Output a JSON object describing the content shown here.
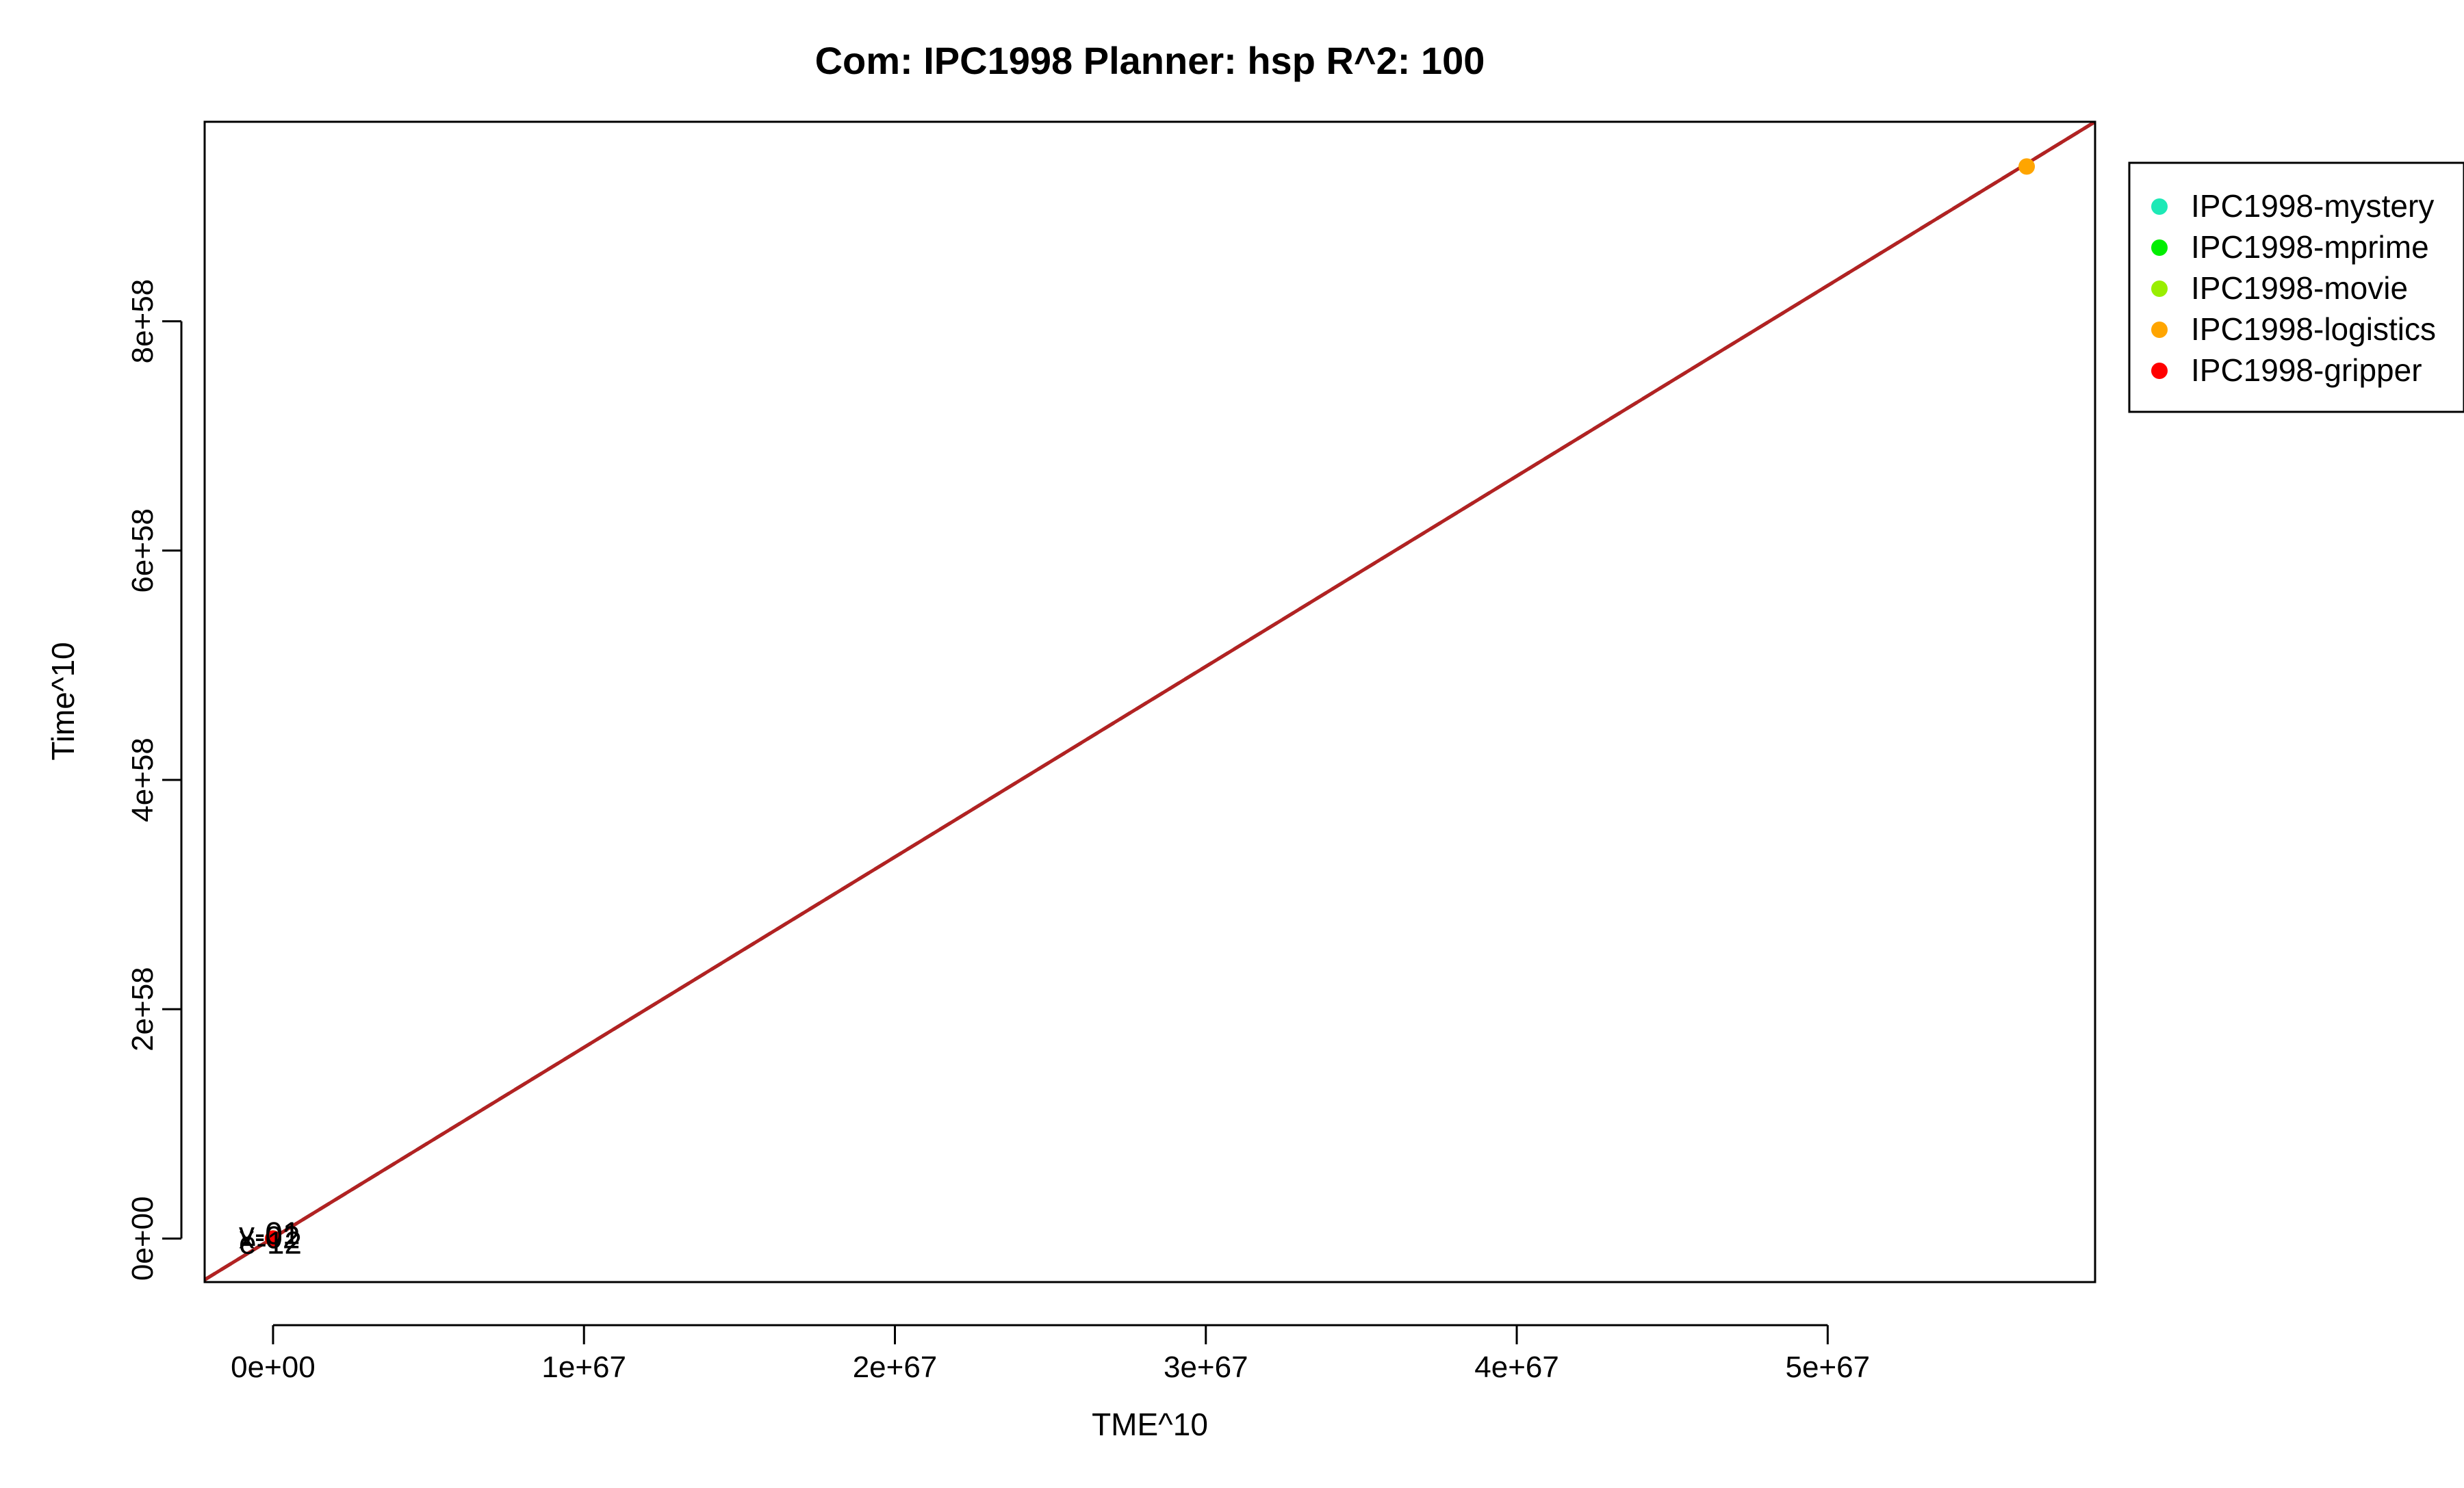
{
  "chart_data": {
    "type": "scatter",
    "title": "Com: IPC1998 Planner: hsp R^2: 100",
    "xlabel": "TME^10",
    "ylabel": "Time^10",
    "xlim": [
      -2.2e+66,
      5.86e+67
    ],
    "ylim": [
      -3.8e+57,
      9.74e+58
    ],
    "x_ticks": [
      0,
      1e+67,
      2e+67,
      3e+67,
      4e+67,
      5e+67
    ],
    "x_tick_labels": [
      "0e+00",
      "1e+67",
      "2e+67",
      "3e+67",
      "4e+67",
      "5e+67"
    ],
    "y_ticks": [
      0,
      2e+58,
      4e+58,
      6e+58,
      8e+58
    ],
    "y_tick_labels": [
      "0e+00",
      "2e+58",
      "4e+58",
      "6e+58",
      "8e+58"
    ],
    "grid": false,
    "legend_position": "top-right outside",
    "series": [
      {
        "name": "IPC1998-mystery",
        "color": "#1de9b6",
        "points": [
          [
            0,
            0
          ]
        ]
      },
      {
        "name": "IPC1998-mprime",
        "color": "#00ee00",
        "points": [
          [
            0,
            0
          ]
        ]
      },
      {
        "name": "IPC1998-movie",
        "color": "#99ee00",
        "points": [
          [
            0,
            0
          ]
        ]
      },
      {
        "name": "IPC1998-logistics",
        "color": "#ffa500",
        "points": [
          [
            5.64e+67,
            9.35e+58
          ]
        ]
      },
      {
        "name": "IPC1998-gripper",
        "color": "#ff0000",
        "points": [
          [
            0,
            0
          ]
        ]
      }
    ],
    "point_labels": [
      {
        "text": "x-02",
        "x": 0,
        "y": 0
      },
      {
        "text": "e-12",
        "x": 0,
        "y": 0
      },
      {
        "text": "v-01",
        "x": 0,
        "y": 0
      }
    ],
    "fit_lines": [
      {
        "color": "#000000",
        "style": "dashed",
        "from": [
          -2.2e+66,
          -3.6e+57
        ],
        "to": [
          5.86e+67,
          9.74e+58
        ]
      },
      {
        "color": "#b22222",
        "style": "solid",
        "from": [
          -2.2e+66,
          -3.6e+57
        ],
        "to": [
          5.86e+67,
          9.74e+58
        ]
      }
    ]
  }
}
